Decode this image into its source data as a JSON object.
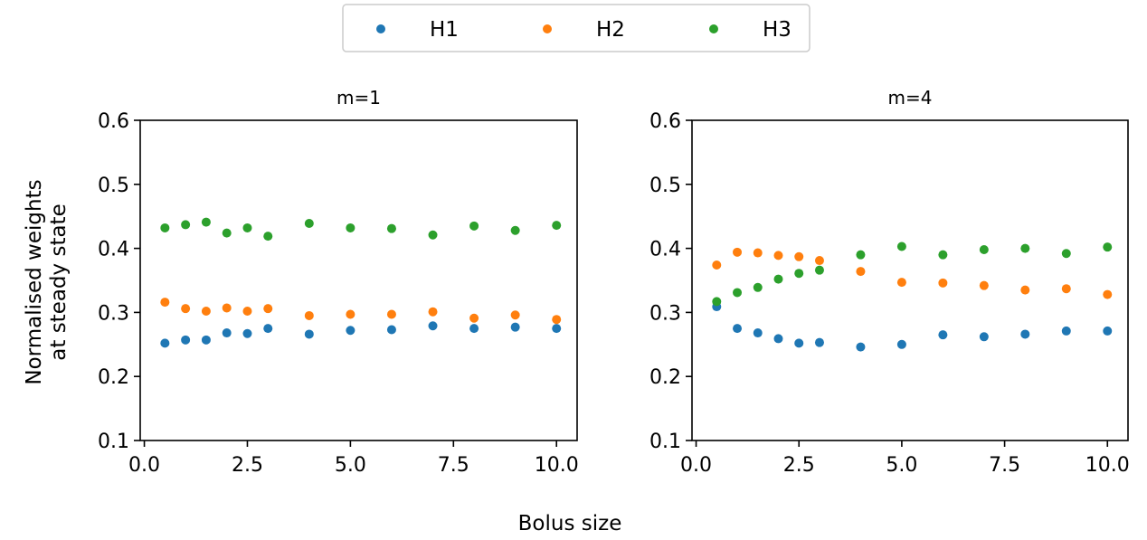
{
  "figure": {
    "xlabel": "Bolus size",
    "ylabel_lines": [
      "Normalised weights",
      "at steady state"
    ]
  },
  "legend": {
    "placement": "top-center",
    "entries": [
      {
        "name": "H1",
        "color": "#1f77b4"
      },
      {
        "name": "H2",
        "color": "#ff7f0e"
      },
      {
        "name": "H3",
        "color": "#2ca02c"
      }
    ]
  },
  "chart_data": [
    {
      "type": "scatter",
      "title": "m=1",
      "xlim": [
        -0.1,
        10.5
      ],
      "ylim": [
        0.1,
        0.6
      ],
      "xticks": [
        "0.0",
        "2.5",
        "5.0",
        "7.5",
        "10.0"
      ],
      "yticks": [
        "0.1",
        "0.2",
        "0.3",
        "0.4",
        "0.5",
        "0.6"
      ],
      "x": [
        0.5,
        1,
        1.5,
        2,
        2.5,
        3,
        4,
        5,
        6,
        7,
        8,
        9,
        10
      ],
      "series": [
        {
          "name": "H1",
          "color": "#1f77b4",
          "values": [
            0.252,
            0.257,
            0.257,
            0.268,
            0.267,
            0.275,
            0.266,
            0.272,
            0.273,
            0.279,
            0.275,
            0.277,
            0.275
          ]
        },
        {
          "name": "H2",
          "color": "#ff7f0e",
          "values": [
            0.316,
            0.306,
            0.302,
            0.307,
            0.302,
            0.306,
            0.295,
            0.297,
            0.297,
            0.301,
            0.291,
            0.296,
            0.289
          ]
        },
        {
          "name": "H3",
          "color": "#2ca02c",
          "values": [
            0.432,
            0.437,
            0.441,
            0.424,
            0.432,
            0.419,
            0.439,
            0.432,
            0.431,
            0.421,
            0.435,
            0.428,
            0.436
          ]
        }
      ]
    },
    {
      "type": "scatter",
      "title": "m=4",
      "xlim": [
        -0.1,
        10.5
      ],
      "ylim": [
        0.1,
        0.6
      ],
      "xticks": [
        "0.0",
        "2.5",
        "5.0",
        "7.5",
        "10.0"
      ],
      "yticks": [
        "0.1",
        "0.2",
        "0.3",
        "0.4",
        "0.5",
        "0.6"
      ],
      "x": [
        0.5,
        1,
        1.5,
        2,
        2.5,
        3,
        4,
        5,
        6,
        7,
        8,
        9,
        10
      ],
      "series": [
        {
          "name": "H1",
          "color": "#1f77b4",
          "values": [
            0.309,
            0.275,
            0.268,
            0.259,
            0.252,
            0.253,
            0.246,
            0.25,
            0.265,
            0.262,
            0.266,
            0.271,
            0.271
          ]
        },
        {
          "name": "H2",
          "color": "#ff7f0e",
          "values": [
            0.374,
            0.394,
            0.393,
            0.389,
            0.387,
            0.381,
            0.364,
            0.347,
            0.346,
            0.342,
            0.335,
            0.337,
            0.328
          ]
        },
        {
          "name": "H3",
          "color": "#2ca02c",
          "values": [
            0.317,
            0.331,
            0.339,
            0.352,
            0.361,
            0.366,
            0.39,
            0.403,
            0.39,
            0.398,
            0.4,
            0.392,
            0.402
          ]
        }
      ]
    }
  ]
}
